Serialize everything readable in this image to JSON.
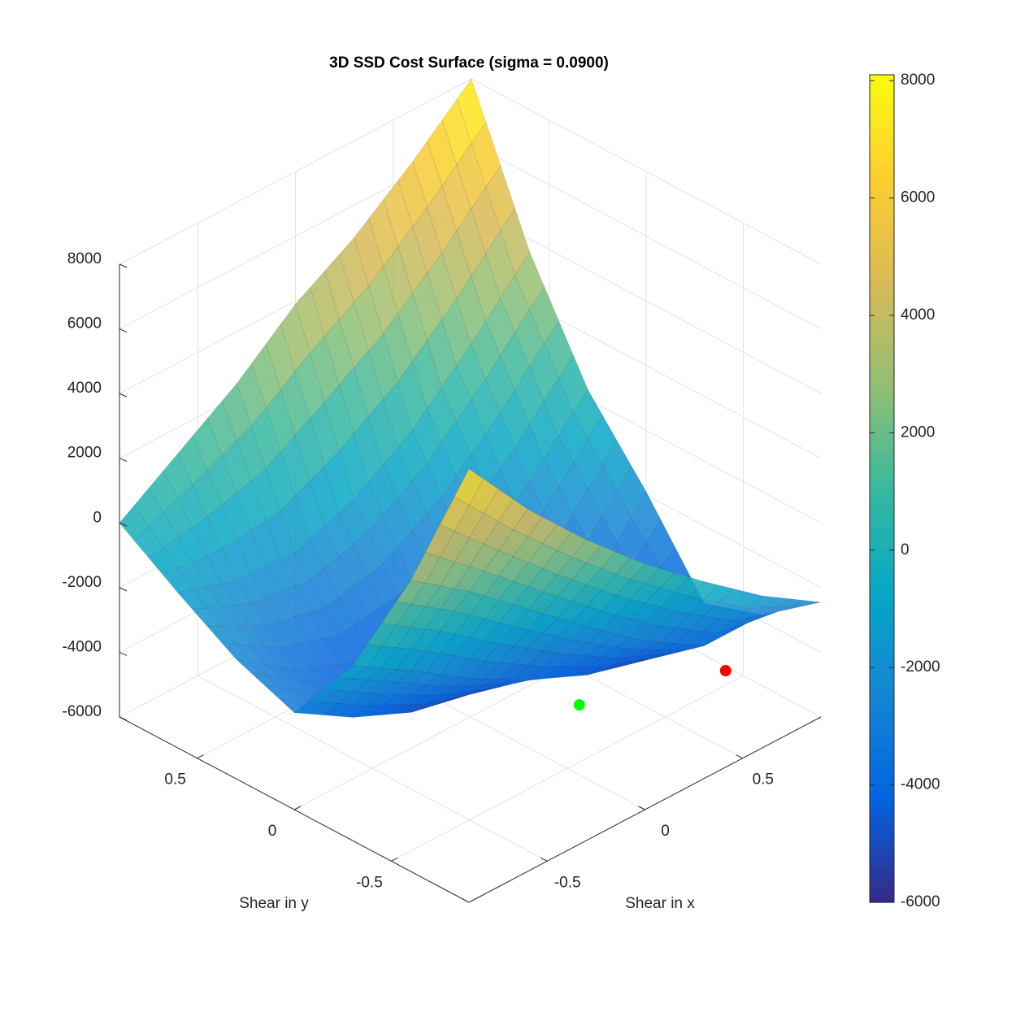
{
  "chart_data": {
    "type": "surface",
    "title": "3D SSD Cost Surface (sigma = 0.0900)",
    "x_label": "Shear in x",
    "y_label": "Shear in y",
    "x": [
      -0.9,
      -0.6,
      -0.3,
      0,
      0.3,
      0.6,
      0.9
    ],
    "y": [
      -0.9,
      -0.6,
      -0.3,
      0,
      0.3,
      0.6,
      0.9
    ],
    "z": [
      [
        7400,
        5200,
        3300,
        1600,
        100,
        -1300,
        -2450
      ],
      [
        3000,
        1700,
        200,
        -1300,
        -2700,
        -3800,
        -3800
      ],
      [
        -600,
        -1700,
        -2900,
        -3900,
        -4700,
        -5200,
        -4400
      ],
      [
        -3000,
        -4100,
        -4900,
        -5300,
        -5100,
        -4100,
        -1900
      ],
      [
        -2300,
        -3600,
        -4300,
        -4200,
        -3200,
        -1600,
        300
      ],
      [
        -1200,
        -1800,
        -1900,
        -1200,
        0,
        1700,
        3600
      ],
      [
        0,
        1200,
        2400,
        3900,
        5000,
        6400,
        8000
      ]
    ],
    "xlim": [
      -0.9,
      0.9
    ],
    "ylim": [
      -0.9,
      0.9
    ],
    "zlim": [
      -6000,
      8000
    ],
    "xticks": [
      -0.5,
      0,
      0.5
    ],
    "yticks": [
      -0.5,
      0,
      0.5
    ],
    "zticks": [
      -6000,
      -4000,
      -2000,
      0,
      2000,
      4000,
      6000,
      8000
    ],
    "clim": [
      -6000,
      8100
    ],
    "cticks": [
      -6000,
      -4000,
      -2000,
      0,
      2000,
      4000,
      6000,
      8000
    ],
    "colormap": [
      "#352a87",
      "#0363e1",
      "#1485d4",
      "#06a7c6",
      "#38b99e",
      "#92bf73",
      "#d9ba56",
      "#fcce2e",
      "#f9fb0e"
    ],
    "grid": true,
    "markers": {
      "x": [
        0.77,
        0.26
      ],
      "y": [
        -0.54,
        -0.3
      ],
      "z": [
        -5300,
        -5500
      ],
      "colors": [
        "#ff0000",
        "#00ff00"
      ]
    }
  }
}
